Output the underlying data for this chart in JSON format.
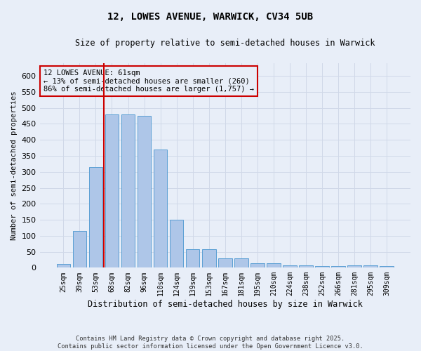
{
  "title_line1": "12, LOWES AVENUE, WARWICK, CV34 5UB",
  "title_line2": "Size of property relative to semi-detached houses in Warwick",
  "categories": [
    "25sqm",
    "39sqm",
    "53sqm",
    "68sqm",
    "82sqm",
    "96sqm",
    "110sqm",
    "124sqm",
    "139sqm",
    "153sqm",
    "167sqm",
    "181sqm",
    "195sqm",
    "210sqm",
    "224sqm",
    "238sqm",
    "252sqm",
    "266sqm",
    "281sqm",
    "295sqm",
    "309sqm"
  ],
  "values": [
    12,
    115,
    315,
    480,
    480,
    475,
    370,
    150,
    58,
    58,
    30,
    30,
    15,
    15,
    8,
    8,
    5,
    5,
    7,
    7,
    5
  ],
  "bar_color": "#aec6e8",
  "bar_edge_color": "#5a9fd4",
  "grid_color": "#d0d8e8",
  "background_color": "#e8eef8",
  "red_line_color": "#cc0000",
  "red_line_index": 2.5,
  "annotation_title": "12 LOWES AVENUE: 61sqm",
  "annotation_line1": "← 13% of semi-detached houses are smaller (260)",
  "annotation_line2": "86% of semi-detached houses are larger (1,757) →",
  "xlabel": "Distribution of semi-detached houses by size in Warwick",
  "ylabel": "Number of semi-detached properties",
  "footer_line1": "Contains HM Land Registry data © Crown copyright and database right 2025.",
  "footer_line2": "Contains public sector information licensed under the Open Government Licence v3.0.",
  "ylim": [
    0,
    640
  ],
  "yticks": [
    0,
    50,
    100,
    150,
    200,
    250,
    300,
    350,
    400,
    450,
    500,
    550,
    600
  ]
}
